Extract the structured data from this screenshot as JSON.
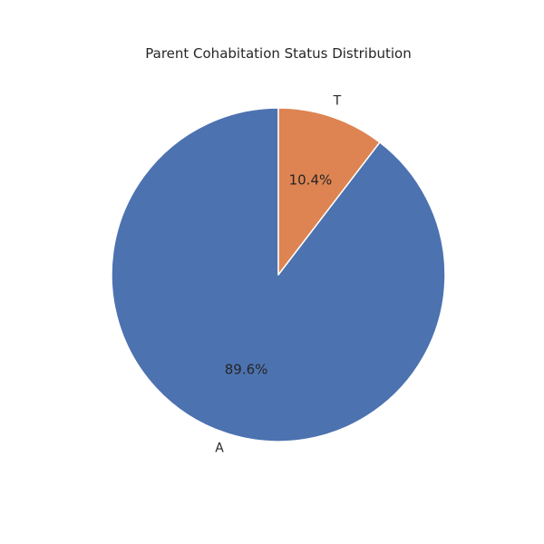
{
  "chart_data": {
    "type": "pie",
    "title": "Parent Cohabitation Status Distribution",
    "categories": [
      "A",
      "T"
    ],
    "values": [
      89.6,
      10.4
    ],
    "value_labels": [
      "89.6%",
      "10.4%"
    ],
    "colors": [
      "#4c72b0",
      "#dd8452"
    ],
    "start_angle_deg": 90,
    "direction": "counterclockwise"
  }
}
